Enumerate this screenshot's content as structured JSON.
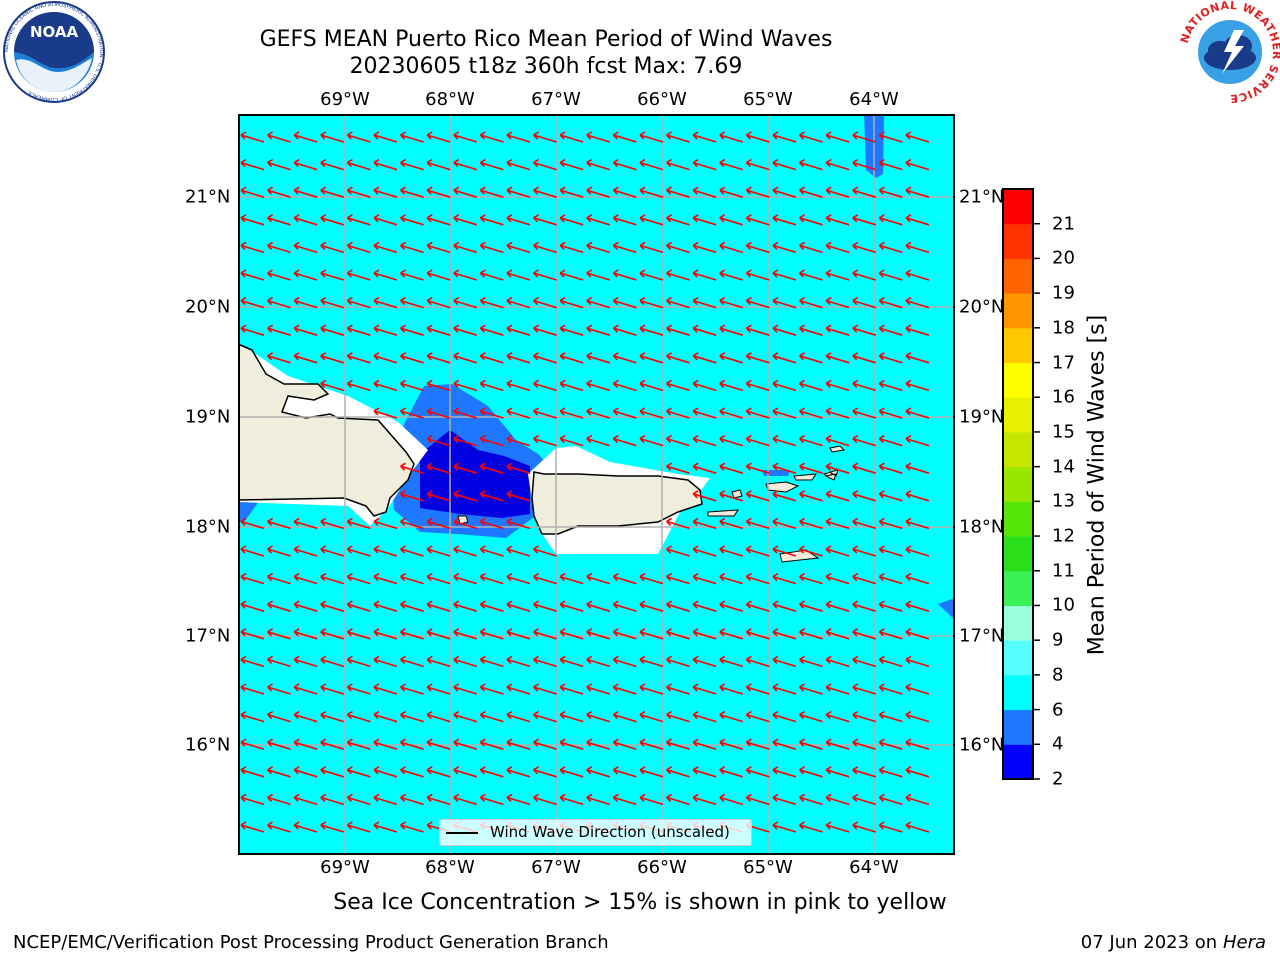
{
  "title": {
    "line1": "GEFS MEAN Puerto Rico Mean Period of Wind Waves",
    "line2": "20230605 t18z 360h fcst   Max: 7.69"
  },
  "map": {
    "lon_labels": [
      "69°W",
      "68°W",
      "67°W",
      "66°W",
      "65°W",
      "64°W"
    ],
    "lat_labels": [
      "21°N",
      "20°N",
      "19°N",
      "18°N",
      "17°N",
      "16°N"
    ],
    "extent": {
      "lon_min": -70.0,
      "lon_max": -63.25,
      "lat_min": 15.0,
      "lat_max": 21.75
    },
    "arrow_direction": "toward west-northwest",
    "colors": {
      "ocean_field": "#00ffff",
      "shoal_band": "#1e90ff",
      "deep_blue_band": "#0000e0",
      "land": "#efeddb",
      "arrows": "#ff0000"
    }
  },
  "legend": {
    "label": "Wind Wave Direction (unscaled)"
  },
  "colorbar": {
    "title": "Mean Period of Wind Waves [s]",
    "ticks": [
      "2",
      "4",
      "6",
      "8",
      "9",
      "10",
      "11",
      "12",
      "13",
      "14",
      "15",
      "16",
      "17",
      "18",
      "19",
      "20",
      "21"
    ],
    "colors": [
      "#0000ff",
      "#1e78ff",
      "#00ffff",
      "#55ffff",
      "#99ffdd",
      "#3cf058",
      "#2adf1a",
      "#55e60a",
      "#99e600",
      "#c6e600",
      "#e6f000",
      "#ffff00",
      "#ffc800",
      "#ff9600",
      "#ff6400",
      "#ff3200",
      "#ff0000"
    ]
  },
  "footer": {
    "sea_ice": "Sea Ice Concentration > 15% is shown in pink to yellow",
    "credit": "NCEP/EMC/Verification Post Processing Product Generation Branch",
    "date": "07 Jun 2023 on",
    "host": "Hera"
  },
  "logos": {
    "noaa": "NOAA",
    "noaa_ring": "NATIONAL OCEANIC AND ATMOSPHERIC ADMINISTRATION · U.S. DEPARTMENT OF COMMERCE",
    "nws_ring": "NATIONAL WEATHER SERVICE"
  }
}
